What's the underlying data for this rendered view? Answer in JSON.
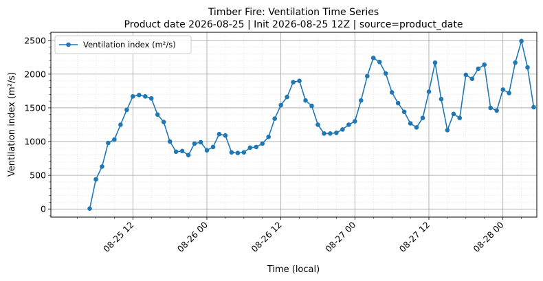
{
  "chart_data": {
    "type": "line",
    "title": "Timber Fire: Ventilation Time Series",
    "subtitle": "Product date 2026-08-25 | Init 2026-08-25 12Z | source=product_date",
    "xlabel": "Time (local)",
    "ylabel": "Ventilation index (m²/s)",
    "x_ticks": [
      {
        "label": "08-25 12",
        "t": 12
      },
      {
        "label": "08-26 00",
        "t": 24
      },
      {
        "label": "08-26 12",
        "t": 36
      },
      {
        "label": "08-27 00",
        "t": 48
      },
      {
        "label": "08-27 12",
        "t": 60
      },
      {
        "label": "08-28 00",
        "t": 72
      }
    ],
    "xlim": [
      -1.3,
      77.5
    ],
    "ylim": [
      -120,
      2620
    ],
    "y_ticks": [
      0,
      500,
      1000,
      1500,
      2000,
      2500
    ],
    "grid": true,
    "legend_position": "top-left",
    "series": [
      {
        "name": "Ventilation index (m²/s)",
        "color": "#1f77b4",
        "x": [
          5,
          6,
          7,
          8,
          9,
          10,
          11,
          12,
          13,
          14,
          15,
          16,
          17,
          18,
          19,
          20,
          21,
          22,
          23,
          24,
          25,
          26,
          27,
          28,
          29,
          30,
          31,
          32,
          33,
          34,
          35,
          36,
          37,
          38,
          39,
          40,
          41,
          42,
          43,
          44,
          45,
          46,
          47,
          48,
          49,
          50,
          51,
          52,
          53,
          54,
          55,
          56,
          57,
          58,
          59,
          60,
          61,
          62,
          63,
          64,
          65,
          66,
          67,
          68,
          69,
          70,
          71,
          72,
          73,
          74,
          75,
          76,
          77
        ],
        "y": [
          5,
          440,
          630,
          980,
          1030,
          1250,
          1470,
          1670,
          1690,
          1670,
          1640,
          1400,
          1290,
          1000,
          850,
          860,
          800,
          970,
          990,
          870,
          920,
          1110,
          1090,
          840,
          830,
          840,
          910,
          920,
          970,
          1070,
          1340,
          1540,
          1660,
          1880,
          1900,
          1610,
          1530,
          1250,
          1120,
          1120,
          1130,
          1180,
          1250,
          1300,
          1610,
          1970,
          2240,
          2180,
          2010,
          1730,
          1570,
          1440,
          1270,
          1210,
          1350,
          1740,
          2170,
          1630,
          1170,
          1410,
          1350,
          1990,
          1930,
          2080,
          2140,
          1500,
          1460,
          1770,
          1720,
          2170,
          2490,
          2100,
          1510
        ]
      }
    ]
  }
}
